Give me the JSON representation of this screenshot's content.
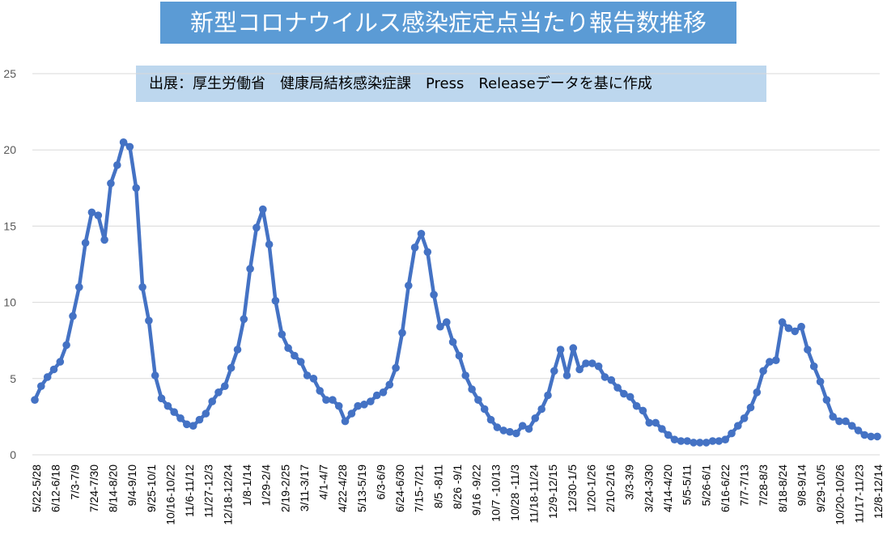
{
  "title": "新型コロナウイルス感染症定点当たり報告数推移",
  "subtitle": "出展：厚生労働省　健康局結核感染症課　Press　Releaseデータを基に作成",
  "colors": {
    "line": "#4472c4",
    "title_bg": "#5b9bd5",
    "subtitle_bg": "#bdd7ee",
    "grid": "#d9d9d9"
  },
  "chart_data": {
    "type": "line",
    "title": "新型コロナウイルス感染症定点当たり報告数推移",
    "xlabel": "",
    "ylabel": "",
    "ylim": [
      0,
      25
    ],
    "yticks": [
      0,
      5,
      10,
      15,
      20,
      25
    ],
    "grid": true,
    "legend": "none",
    "tick_labels": [
      "5/22-5/28",
      "6/12-6/18",
      "7/3-7/9",
      "7/24-7/30",
      "8/14-8/20",
      "9/4-9/10",
      "9/25-10/1",
      "10/16-10/22",
      "11/6-11/12",
      "11/27-12/3",
      "12/18-12/24",
      "1/8-1/14",
      "1/29-2/4",
      "2/19-2/25",
      "3/11-3/17",
      "4/1-4/7",
      "4/22-4/28",
      "5/13-5/19",
      "6/3-6/9",
      "6/24-6/30",
      "7/15-7/21",
      "8/5 -8/11",
      "8/26 -9/1",
      "9/16 -9/22",
      "10/7 -10/13",
      "10/28 -11/3",
      "11/18-11/24",
      "12/9-12/15",
      "12/30-1/5",
      "1/20-1/26",
      "2/10-2/16",
      "3/3-3/9",
      "3/24-3/30",
      "4/14-4/20",
      "5/5-5/11",
      "5/26-6/1",
      "6/16-6/22",
      "7/7-7/13",
      "7/28-8/3",
      "8/18-8/24",
      "9/8-9/14",
      "9/29-10/5",
      "10/20-10/26",
      "11/17-11/23",
      "12/8-12/14"
    ],
    "series": [
      {
        "values": [
          3.6,
          4.5,
          5.1,
          5.6,
          6.1,
          7.2,
          9.1,
          11.0,
          13.9,
          15.9,
          15.7,
          14.1,
          17.8,
          19.0,
          20.5,
          20.2,
          17.5,
          11.0,
          8.8,
          5.2,
          3.7,
          3.2,
          2.8,
          2.4,
          2.0,
          1.9,
          2.3,
          2.7,
          3.5,
          4.1,
          4.5,
          5.7,
          6.9,
          8.9,
          12.2,
          14.9,
          16.1,
          13.8,
          10.1,
          7.9,
          7.0,
          6.5,
          6.1,
          5.2,
          5.0,
          4.2,
          3.6,
          3.6,
          3.2,
          2.2,
          2.7,
          3.2,
          3.3,
          3.5,
          3.9,
          4.1,
          4.6,
          5.7,
          8.0,
          11.1,
          13.6,
          14.5,
          13.3,
          10.5,
          8.4,
          8.7,
          7.4,
          6.5,
          5.2,
          4.3,
          3.6,
          3.0,
          2.3,
          1.8,
          1.6,
          1.5,
          1.4,
          1.9,
          1.7,
          2.4,
          3.0,
          3.9,
          5.5,
          6.9,
          5.2,
          7.0,
          5.6,
          6.0,
          6.0,
          5.8,
          5.1,
          4.9,
          4.4,
          4.0,
          3.8,
          3.2,
          2.9,
          2.1,
          2.1,
          1.7,
          1.3,
          1.0,
          0.9,
          0.9,
          0.8,
          0.8,
          0.8,
          0.9,
          0.9,
          1.0,
          1.4,
          1.9,
          2.4,
          3.1,
          4.1,
          5.5,
          6.1,
          6.2,
          8.7,
          8.3,
          8.1,
          8.4,
          6.9,
          5.8,
          4.8,
          3.6,
          2.5,
          2.2,
          2.2,
          1.9,
          1.6,
          1.3,
          1.2,
          1.2
        ]
      }
    ]
  }
}
